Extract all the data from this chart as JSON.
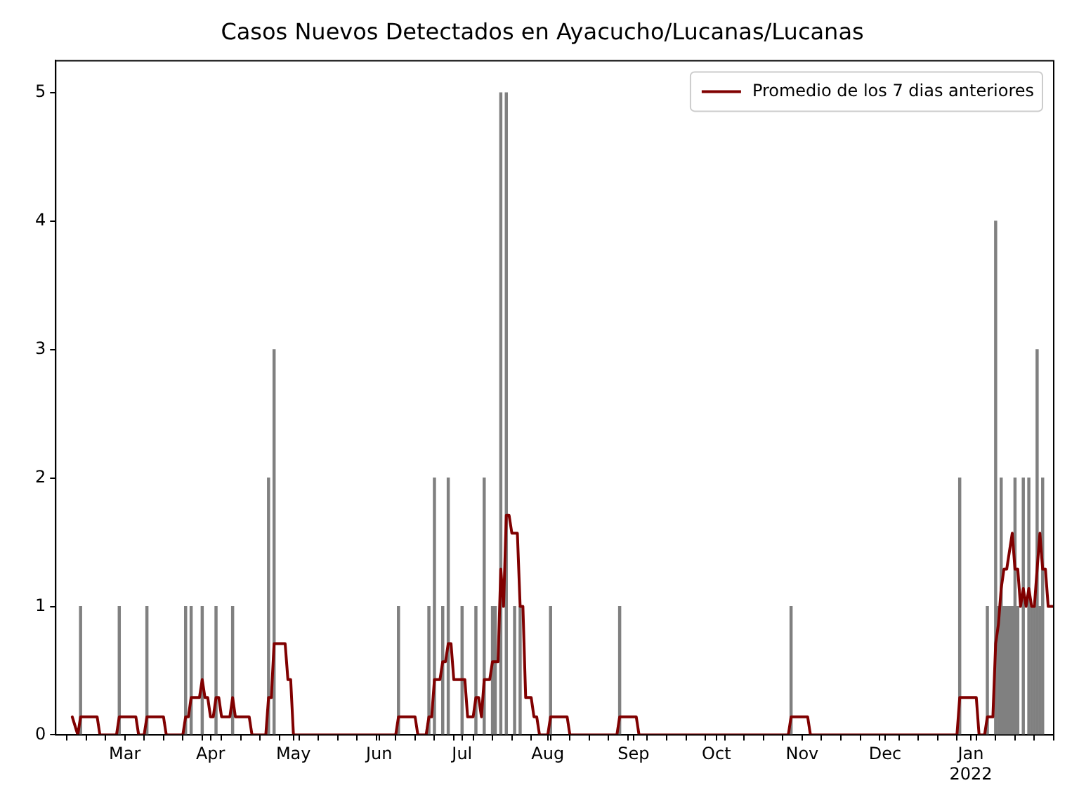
{
  "chart_data": {
    "type": "bar",
    "title": "Casos Nuevos Detectados en Ayacucho/Lucanas/Lucanas",
    "xlim": [
      "2021-02-04",
      "2022-01-31"
    ],
    "xticks": [
      {
        "value": "2021-02-08",
        "label": null
      },
      {
        "value": "2021-02-15",
        "label": null
      },
      {
        "value": "2021-02-22",
        "label": null
      },
      {
        "value": "2021-03-01",
        "label": "Mar"
      },
      {
        "value": "2021-03-08",
        "label": null
      },
      {
        "value": "2021-03-15",
        "label": null
      },
      {
        "value": "2021-03-22",
        "label": null
      },
      {
        "value": "2021-03-29",
        "label": null
      },
      {
        "value": "2021-04-01",
        "label": "Apr"
      },
      {
        "value": "2021-04-05",
        "label": null
      },
      {
        "value": "2021-04-12",
        "label": null
      },
      {
        "value": "2021-04-19",
        "label": null
      },
      {
        "value": "2021-04-26",
        "label": null
      },
      {
        "value": "2021-05-01",
        "label": "May"
      },
      {
        "value": "2021-05-03",
        "label": null
      },
      {
        "value": "2021-05-10",
        "label": null
      },
      {
        "value": "2021-05-17",
        "label": null
      },
      {
        "value": "2021-05-24",
        "label": null
      },
      {
        "value": "2021-05-31",
        "label": null
      },
      {
        "value": "2021-06-01",
        "label": "Jun"
      },
      {
        "value": "2021-06-07",
        "label": null
      },
      {
        "value": "2021-06-14",
        "label": null
      },
      {
        "value": "2021-06-21",
        "label": null
      },
      {
        "value": "2021-06-28",
        "label": null
      },
      {
        "value": "2021-07-01",
        "label": "Jul"
      },
      {
        "value": "2021-07-05",
        "label": null
      },
      {
        "value": "2021-07-12",
        "label": null
      },
      {
        "value": "2021-07-19",
        "label": null
      },
      {
        "value": "2021-07-26",
        "label": null
      },
      {
        "value": "2021-08-01",
        "label": "Aug"
      },
      {
        "value": "2021-08-02",
        "label": null
      },
      {
        "value": "2021-08-09",
        "label": null
      },
      {
        "value": "2021-08-16",
        "label": null
      },
      {
        "value": "2021-08-23",
        "label": null
      },
      {
        "value": "2021-08-30",
        "label": null
      },
      {
        "value": "2021-09-01",
        "label": "Sep"
      },
      {
        "value": "2021-09-06",
        "label": null
      },
      {
        "value": "2021-09-13",
        "label": null
      },
      {
        "value": "2021-09-20",
        "label": null
      },
      {
        "value": "2021-09-27",
        "label": null
      },
      {
        "value": "2021-10-01",
        "label": "Oct"
      },
      {
        "value": "2021-10-04",
        "label": null
      },
      {
        "value": "2021-10-11",
        "label": null
      },
      {
        "value": "2021-10-18",
        "label": null
      },
      {
        "value": "2021-10-25",
        "label": null
      },
      {
        "value": "2021-11-01",
        "label": "Nov"
      },
      {
        "value": "2021-11-08",
        "label": null
      },
      {
        "value": "2021-11-15",
        "label": null
      },
      {
        "value": "2021-11-22",
        "label": null
      },
      {
        "value": "2021-11-29",
        "label": null
      },
      {
        "value": "2021-12-01",
        "label": "Dec"
      },
      {
        "value": "2021-12-06",
        "label": null
      },
      {
        "value": "2021-12-13",
        "label": null
      },
      {
        "value": "2021-12-20",
        "label": null
      },
      {
        "value": "2021-12-27",
        "label": null
      },
      {
        "value": "2022-01-01",
        "label": "Jan\n2022"
      },
      {
        "value": "2022-01-03",
        "label": null
      },
      {
        "value": "2022-01-10",
        "label": null
      },
      {
        "value": "2022-01-17",
        "label": null
      },
      {
        "value": "2022-01-24",
        "label": null
      },
      {
        "value": "2022-01-31",
        "label": null
      }
    ],
    "ylim": [
      0,
      5.25
    ],
    "yticks": [
      0,
      1,
      2,
      3,
      4,
      5
    ],
    "legend": "top right",
    "marker": "none",
    "line_style": "solid",
    "series": [
      {
        "color": "#808080",
        "x": [
          "2021-02-13",
          "2021-02-27",
          "2021-03-09",
          "2021-03-23",
          "2021-03-25",
          "2021-03-29",
          "2021-04-03",
          "2021-04-09",
          "2021-04-22",
          "2021-04-24",
          "2021-06-08",
          "2021-06-19",
          "2021-06-21",
          "2021-06-24",
          "2021-06-26",
          "2021-07-01",
          "2021-07-06",
          "2021-07-09",
          "2021-07-12",
          "2021-07-13",
          "2021-07-15",
          "2021-07-17",
          "2021-07-20",
          "2021-07-22",
          "2021-08-02",
          "2021-08-27",
          "2021-10-28",
          "2021-12-28",
          "2022-01-07",
          "2022-01-10",
          "2022-01-11",
          "2022-01-12",
          "2022-01-13",
          "2022-01-14",
          "2022-01-15",
          "2022-01-16",
          "2022-01-17",
          "2022-01-18",
          "2022-01-20",
          "2022-01-22",
          "2022-01-23",
          "2022-01-24",
          "2022-01-25",
          "2022-01-26",
          "2022-01-27"
        ],
        "values": [
          1,
          1,
          1,
          1,
          1,
          1,
          1,
          1,
          2,
          3,
          1,
          1,
          2,
          1,
          2,
          1,
          1,
          2,
          1,
          1,
          5,
          5,
          1,
          1,
          1,
          1,
          1,
          2,
          1,
          4,
          1,
          2,
          1,
          1,
          1,
          1,
          2,
          1,
          2,
          2,
          1,
          1,
          3,
          1,
          2
        ]
      },
      {
        "type": "line",
        "name": "Promedio de los 7 dias anteriores",
        "color": "#800000",
        "x": [
          "2021-02-10",
          "2021-02-12",
          "2021-02-13",
          "2021-02-19",
          "2021-02-20",
          "2021-02-26",
          "2021-02-27",
          "2021-03-05",
          "2021-03-06",
          "2021-03-08",
          "2021-03-09",
          "2021-03-15",
          "2021-03-16",
          "2021-03-22",
          "2021-03-23",
          "2021-03-24",
          "2021-03-25",
          "2021-03-28",
          "2021-03-29",
          "2021-03-30",
          "2021-03-31",
          "2021-04-01",
          "2021-04-02",
          "2021-04-03",
          "2021-04-04",
          "2021-04-05",
          "2021-04-08",
          "2021-04-09",
          "2021-04-10",
          "2021-04-15",
          "2021-04-16",
          "2021-04-21",
          "2021-04-22",
          "2021-04-23",
          "2021-04-24",
          "2021-04-28",
          "2021-04-29",
          "2021-04-30",
          "2021-05-01",
          "2021-06-07",
          "2021-06-08",
          "2021-06-14",
          "2021-06-15",
          "2021-06-18",
          "2021-06-19",
          "2021-06-20",
          "2021-06-21",
          "2021-06-23",
          "2021-06-24",
          "2021-06-25",
          "2021-06-26",
          "2021-06-27",
          "2021-06-28",
          "2021-07-02",
          "2021-07-03",
          "2021-07-05",
          "2021-07-06",
          "2021-07-07",
          "2021-07-08",
          "2021-07-09",
          "2021-07-11",
          "2021-07-12",
          "2021-07-14",
          "2021-07-15",
          "2021-07-16",
          "2021-07-17",
          "2021-07-18",
          "2021-07-19",
          "2021-07-21",
          "2021-07-22",
          "2021-07-23",
          "2021-07-24",
          "2021-07-26",
          "2021-07-27",
          "2021-07-28",
          "2021-07-29",
          "2021-08-01",
          "2021-08-02",
          "2021-08-08",
          "2021-08-09",
          "2021-08-26",
          "2021-08-27",
          "2021-09-02",
          "2021-09-03",
          "2021-10-27",
          "2021-10-28",
          "2021-11-03",
          "2021-11-04",
          "2021-12-27",
          "2021-12-28",
          "2022-01-03",
          "2022-01-04",
          "2022-01-06",
          "2022-01-07",
          "2022-01-09",
          "2022-01-10",
          "2022-01-11",
          "2022-01-12",
          "2022-01-13",
          "2022-01-14",
          "2022-01-15",
          "2022-01-16",
          "2022-01-17",
          "2022-01-18",
          "2022-01-19",
          "2022-01-20",
          "2022-01-21",
          "2022-01-22",
          "2022-01-23",
          "2022-01-24",
          "2022-01-25",
          "2022-01-26",
          "2022-01-27",
          "2022-01-28",
          "2022-01-29",
          "2022-01-31"
        ],
        "values": [
          0.14,
          0,
          0.14,
          0.14,
          0,
          0,
          0.14,
          0.14,
          0,
          0,
          0.14,
          0.14,
          0,
          0,
          0.14,
          0.14,
          0.29,
          0.29,
          0.43,
          0.29,
          0.29,
          0.14,
          0.14,
          0.29,
          0.29,
          0.14,
          0.14,
          0.29,
          0.14,
          0.14,
          0,
          0,
          0.29,
          0.29,
          0.71,
          0.71,
          0.43,
          0.43,
          0,
          0,
          0.14,
          0.14,
          0,
          0,
          0.14,
          0.14,
          0.43,
          0.43,
          0.57,
          0.57,
          0.71,
          0.71,
          0.43,
          0.43,
          0.14,
          0.14,
          0.29,
          0.29,
          0.14,
          0.43,
          0.43,
          0.57,
          0.57,
          1.29,
          1.0,
          1.71,
          1.71,
          1.57,
          1.57,
          1.0,
          1.0,
          0.29,
          0.29,
          0.14,
          0.14,
          0,
          0,
          0.14,
          0.14,
          0,
          0,
          0.14,
          0.14,
          0,
          0,
          0.14,
          0.14,
          0,
          0,
          0.29,
          0.29,
          0,
          0,
          0.14,
          0.14,
          0.71,
          0.86,
          1.14,
          1.29,
          1.29,
          1.43,
          1.57,
          1.29,
          1.29,
          1.0,
          1.14,
          1.0,
          1.14,
          1.0,
          1.0,
          1.29,
          1.57,
          1.29,
          1.29,
          1.0,
          1.0
        ]
      }
    ]
  }
}
